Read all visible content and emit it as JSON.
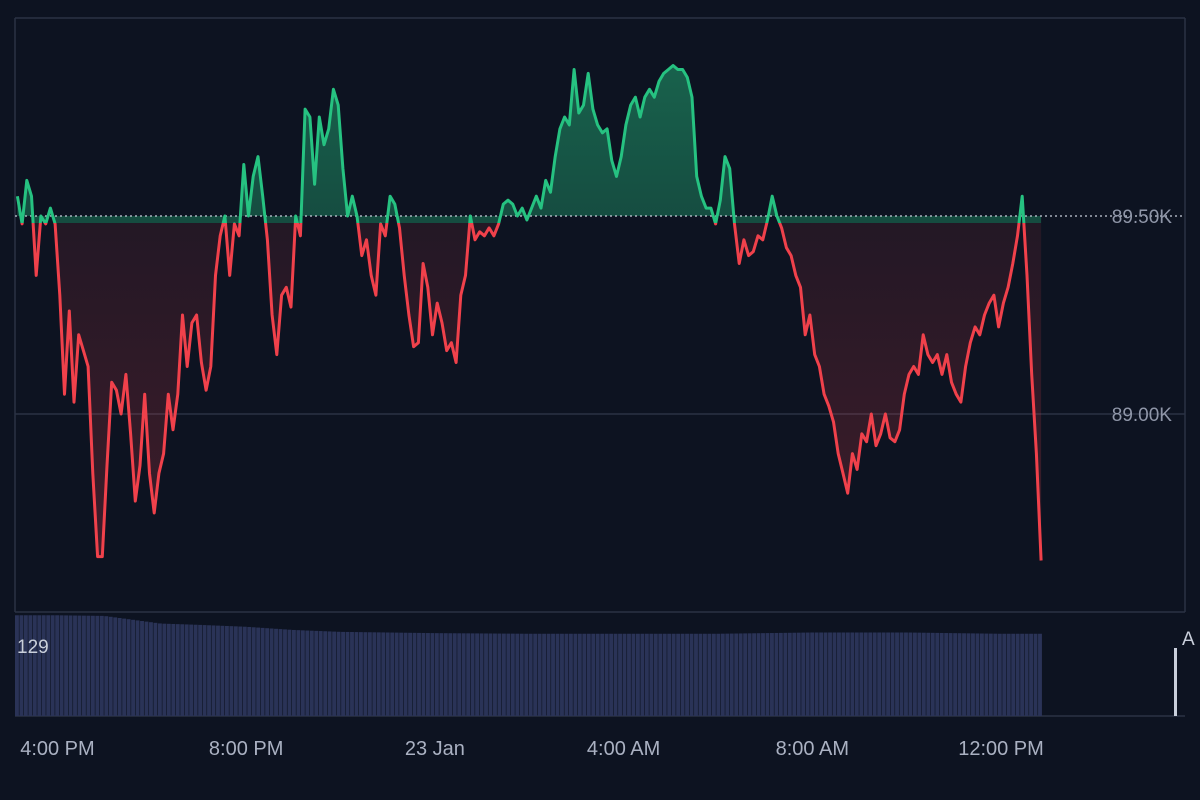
{
  "chart_data": {
    "type": "line",
    "baseline": 89.5,
    "y_unit": "K",
    "y_range": [
      88.5,
      90.0
    ],
    "y_ticks": [
      {
        "value": 89.5,
        "label": "89.50K"
      },
      {
        "value": 89.0,
        "label": "89.00K"
      }
    ],
    "x_ticks": [
      {
        "hour": 0,
        "label": "4:00 PM"
      },
      {
        "hour": 4,
        "label": "8:00 PM"
      },
      {
        "hour": 8,
        "label": "23 Jan"
      },
      {
        "hour": 12,
        "label": "4:00 AM"
      },
      {
        "hour": 16,
        "label": "8:00 AM"
      },
      {
        "hour": 20,
        "label": "12:00 PM"
      }
    ],
    "x_range_hours": [
      -0.9,
      23.9
    ],
    "colors": {
      "above": "#26c281",
      "below": "#f0414b",
      "volume": "#2a3357",
      "grid": "#2b3244",
      "baseline": "#c9cfdb",
      "background": "#0d1321"
    },
    "series": [
      {
        "points": [
          [
            -0.85,
            89.55
          ],
          [
            -0.75,
            89.48
          ],
          [
            -0.65,
            89.59
          ],
          [
            -0.55,
            89.55
          ],
          [
            -0.45,
            89.35
          ],
          [
            -0.35,
            89.5
          ],
          [
            -0.25,
            89.48
          ],
          [
            -0.15,
            89.52
          ],
          [
            -0.05,
            89.48
          ],
          [
            0.05,
            89.3
          ],
          [
            0.15,
            89.05
          ],
          [
            0.25,
            89.26
          ],
          [
            0.35,
            89.03
          ],
          [
            0.45,
            89.2
          ],
          [
            0.55,
            89.16
          ],
          [
            0.65,
            89.12
          ],
          [
            0.75,
            88.85
          ],
          [
            0.85,
            88.64
          ],
          [
            0.95,
            88.64
          ],
          [
            1.05,
            88.87
          ],
          [
            1.15,
            89.08
          ],
          [
            1.25,
            89.06
          ],
          [
            1.35,
            89.0
          ],
          [
            1.45,
            89.1
          ],
          [
            1.55,
            88.95
          ],
          [
            1.65,
            88.78
          ],
          [
            1.75,
            88.87
          ],
          [
            1.85,
            89.05
          ],
          [
            1.95,
            88.85
          ],
          [
            2.05,
            88.75
          ],
          [
            2.15,
            88.85
          ],
          [
            2.25,
            88.9
          ],
          [
            2.35,
            89.05
          ],
          [
            2.45,
            88.96
          ],
          [
            2.55,
            89.05
          ],
          [
            2.65,
            89.25
          ],
          [
            2.75,
            89.12
          ],
          [
            2.85,
            89.23
          ],
          [
            2.95,
            89.25
          ],
          [
            3.05,
            89.13
          ],
          [
            3.15,
            89.06
          ],
          [
            3.25,
            89.12
          ],
          [
            3.35,
            89.35
          ],
          [
            3.45,
            89.45
          ],
          [
            3.55,
            89.5
          ],
          [
            3.65,
            89.35
          ],
          [
            3.75,
            89.48
          ],
          [
            3.85,
            89.45
          ],
          [
            3.95,
            89.63
          ],
          [
            4.05,
            89.5
          ],
          [
            4.15,
            89.6
          ],
          [
            4.25,
            89.65
          ],
          [
            4.35,
            89.55
          ],
          [
            4.45,
            89.44
          ],
          [
            4.55,
            89.25
          ],
          [
            4.65,
            89.15
          ],
          [
            4.75,
            89.3
          ],
          [
            4.85,
            89.32
          ],
          [
            4.95,
            89.27
          ],
          [
            5.05,
            89.5
          ],
          [
            5.15,
            89.45
          ],
          [
            5.25,
            89.77
          ],
          [
            5.35,
            89.75
          ],
          [
            5.45,
            89.58
          ],
          [
            5.55,
            89.75
          ],
          [
            5.65,
            89.68
          ],
          [
            5.75,
            89.72
          ],
          [
            5.85,
            89.82
          ],
          [
            5.95,
            89.78
          ],
          [
            6.05,
            89.62
          ],
          [
            6.15,
            89.5
          ],
          [
            6.25,
            89.55
          ],
          [
            6.35,
            89.5
          ],
          [
            6.45,
            89.4
          ],
          [
            6.55,
            89.44
          ],
          [
            6.65,
            89.35
          ],
          [
            6.75,
            89.3
          ],
          [
            6.85,
            89.48
          ],
          [
            6.95,
            89.45
          ],
          [
            7.05,
            89.55
          ],
          [
            7.15,
            89.53
          ],
          [
            7.25,
            89.47
          ],
          [
            7.35,
            89.35
          ],
          [
            7.45,
            89.25
          ],
          [
            7.55,
            89.17
          ],
          [
            7.65,
            89.18
          ],
          [
            7.75,
            89.38
          ],
          [
            7.85,
            89.32
          ],
          [
            7.95,
            89.2
          ],
          [
            8.05,
            89.28
          ],
          [
            8.15,
            89.23
          ],
          [
            8.25,
            89.16
          ],
          [
            8.35,
            89.18
          ],
          [
            8.45,
            89.13
          ],
          [
            8.55,
            89.3
          ],
          [
            8.65,
            89.35
          ],
          [
            8.75,
            89.5
          ],
          [
            8.85,
            89.44
          ],
          [
            8.95,
            89.46
          ],
          [
            9.05,
            89.45
          ],
          [
            9.15,
            89.47
          ],
          [
            9.25,
            89.45
          ],
          [
            9.35,
            89.48
          ],
          [
            9.45,
            89.53
          ],
          [
            9.55,
            89.54
          ],
          [
            9.65,
            89.53
          ],
          [
            9.75,
            89.5
          ],
          [
            9.85,
            89.52
          ],
          [
            9.95,
            89.49
          ],
          [
            10.05,
            89.52
          ],
          [
            10.15,
            89.55
          ],
          [
            10.25,
            89.52
          ],
          [
            10.35,
            89.59
          ],
          [
            10.45,
            89.56
          ],
          [
            10.55,
            89.65
          ],
          [
            10.65,
            89.72
          ],
          [
            10.75,
            89.75
          ],
          [
            10.85,
            89.73
          ],
          [
            10.95,
            89.87
          ],
          [
            11.05,
            89.76
          ],
          [
            11.15,
            89.78
          ],
          [
            11.25,
            89.86
          ],
          [
            11.35,
            89.77
          ],
          [
            11.45,
            89.73
          ],
          [
            11.55,
            89.71
          ],
          [
            11.65,
            89.72
          ],
          [
            11.75,
            89.64
          ],
          [
            11.85,
            89.6
          ],
          [
            11.95,
            89.65
          ],
          [
            12.05,
            89.73
          ],
          [
            12.15,
            89.78
          ],
          [
            12.25,
            89.8
          ],
          [
            12.35,
            89.75
          ],
          [
            12.45,
            89.8
          ],
          [
            12.55,
            89.82
          ],
          [
            12.65,
            89.8
          ],
          [
            12.75,
            89.84
          ],
          [
            12.85,
            89.86
          ],
          [
            12.95,
            89.87
          ],
          [
            13.05,
            89.88
          ],
          [
            13.15,
            89.87
          ],
          [
            13.25,
            89.87
          ],
          [
            13.35,
            89.85
          ],
          [
            13.45,
            89.8
          ],
          [
            13.55,
            89.6
          ],
          [
            13.65,
            89.55
          ],
          [
            13.75,
            89.52
          ],
          [
            13.85,
            89.52
          ],
          [
            13.95,
            89.48
          ],
          [
            14.05,
            89.54
          ],
          [
            14.15,
            89.65
          ],
          [
            14.25,
            89.62
          ],
          [
            14.35,
            89.48
          ],
          [
            14.45,
            89.38
          ],
          [
            14.55,
            89.44
          ],
          [
            14.65,
            89.4
          ],
          [
            14.75,
            89.41
          ],
          [
            14.85,
            89.45
          ],
          [
            14.95,
            89.44
          ],
          [
            15.05,
            89.49
          ],
          [
            15.15,
            89.55
          ],
          [
            15.25,
            89.5
          ],
          [
            15.35,
            89.47
          ],
          [
            15.45,
            89.42
          ],
          [
            15.55,
            89.4
          ],
          [
            15.65,
            89.35
          ],
          [
            15.75,
            89.32
          ],
          [
            15.85,
            89.2
          ],
          [
            15.95,
            89.25
          ],
          [
            16.05,
            89.15
          ],
          [
            16.15,
            89.12
          ],
          [
            16.25,
            89.05
          ],
          [
            16.35,
            89.02
          ],
          [
            16.45,
            88.98
          ],
          [
            16.55,
            88.9
          ],
          [
            16.65,
            88.85
          ],
          [
            16.75,
            88.8
          ],
          [
            16.85,
            88.9
          ],
          [
            16.95,
            88.86
          ],
          [
            17.05,
            88.95
          ],
          [
            17.15,
            88.93
          ],
          [
            17.25,
            89.0
          ],
          [
            17.35,
            88.92
          ],
          [
            17.45,
            88.95
          ],
          [
            17.55,
            89.0
          ],
          [
            17.65,
            88.94
          ],
          [
            17.75,
            88.93
          ],
          [
            17.85,
            88.96
          ],
          [
            17.95,
            89.05
          ],
          [
            18.05,
            89.1
          ],
          [
            18.15,
            89.12
          ],
          [
            18.25,
            89.1
          ],
          [
            18.35,
            89.2
          ],
          [
            18.45,
            89.15
          ],
          [
            18.55,
            89.13
          ],
          [
            18.65,
            89.15
          ],
          [
            18.75,
            89.1
          ],
          [
            18.85,
            89.15
          ],
          [
            18.95,
            89.08
          ],
          [
            19.05,
            89.05
          ],
          [
            19.15,
            89.03
          ],
          [
            19.25,
            89.12
          ],
          [
            19.35,
            89.18
          ],
          [
            19.45,
            89.22
          ],
          [
            19.55,
            89.2
          ],
          [
            19.65,
            89.25
          ],
          [
            19.75,
            89.28
          ],
          [
            19.85,
            89.3
          ],
          [
            19.95,
            89.22
          ],
          [
            20.05,
            89.28
          ],
          [
            20.15,
            89.32
          ],
          [
            20.25,
            89.38
          ],
          [
            20.35,
            89.45
          ],
          [
            20.45,
            89.55
          ],
          [
            20.55,
            89.35
          ],
          [
            20.65,
            89.1
          ],
          [
            20.75,
            88.9
          ],
          [
            20.85,
            88.63
          ]
        ]
      }
    ],
    "volume": {
      "label": "129",
      "edge_label": "A",
      "range": [
        0,
        160
      ],
      "hourly_levels": [
        [
          -0.9,
          158
        ],
        [
          0,
          158
        ],
        [
          1,
          157
        ],
        [
          1.5,
          152
        ],
        [
          2.2,
          145
        ],
        [
          3,
          143
        ],
        [
          4,
          140
        ],
        [
          5,
          135
        ],
        [
          6,
          132
        ],
        [
          8,
          130
        ],
        [
          10,
          129
        ],
        [
          14,
          129
        ],
        [
          16,
          131
        ],
        [
          18,
          131
        ],
        [
          20,
          129
        ],
        [
          20.88,
          129
        ]
      ],
      "bar_count": 230
    }
  }
}
